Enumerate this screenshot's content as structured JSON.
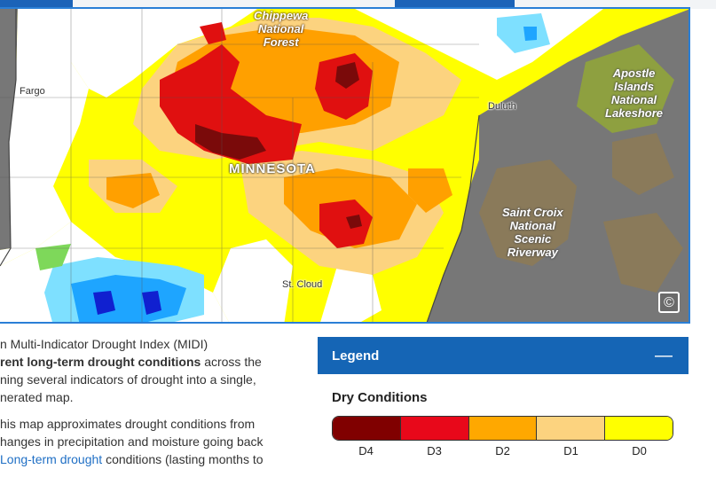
{
  "tabs": {
    "active_index": 1
  },
  "map": {
    "labels": {
      "national_forest": "Chippewa\nNational\nForest",
      "apostle": "Apostle\nIslands\nNational\nLakeshore",
      "saint_croix": "Saint Croix\nNational\nScenic\nRiverway",
      "state": "MINNESOTA",
      "fargo": "Fargo",
      "duluth": "Duluth",
      "st_cloud": "St. Cloud"
    },
    "attribution_icon": "copyright-icon",
    "attribution_symbol": "©",
    "colors": {
      "D4": "#7a0a0a",
      "D3": "#e01010",
      "D2": "#ffa000",
      "D1": "#fcd37f",
      "D0": "#ffff00",
      "wet_light": "#7ee0ff",
      "wet_mid": "#1ea5ff",
      "wet_dark": "#1020d0",
      "green_wet": "#7ed85a",
      "outside": "#777777",
      "land_wi": "#8a7a5a"
    }
  },
  "description": {
    "p1_prefix": "n Multi-Indicator Drought Index (MIDI)",
    "p1_bold": "rent long-term drought conditions",
    "p1_after_bold": " across the",
    "p1_line3": "ning several indicators of drought into a single,",
    "p1_line4": "nerated map.",
    "p2_line1": "his map approximates drought conditions from",
    "p2_line2": "hanges in precipitation and moisture going back",
    "p2_link": "Long-term drought",
    "p2_after_link": " conditions (lasting months to"
  },
  "legend": {
    "title": "Legend",
    "toggle_symbol": "—",
    "section_title": "Dry Conditions",
    "categories": [
      "D4",
      "D3",
      "D2",
      "D1",
      "D0"
    ],
    "category_colors": [
      "#800000",
      "#e8081a",
      "#ffa800",
      "#fcd37f",
      "#ffff00"
    ]
  }
}
